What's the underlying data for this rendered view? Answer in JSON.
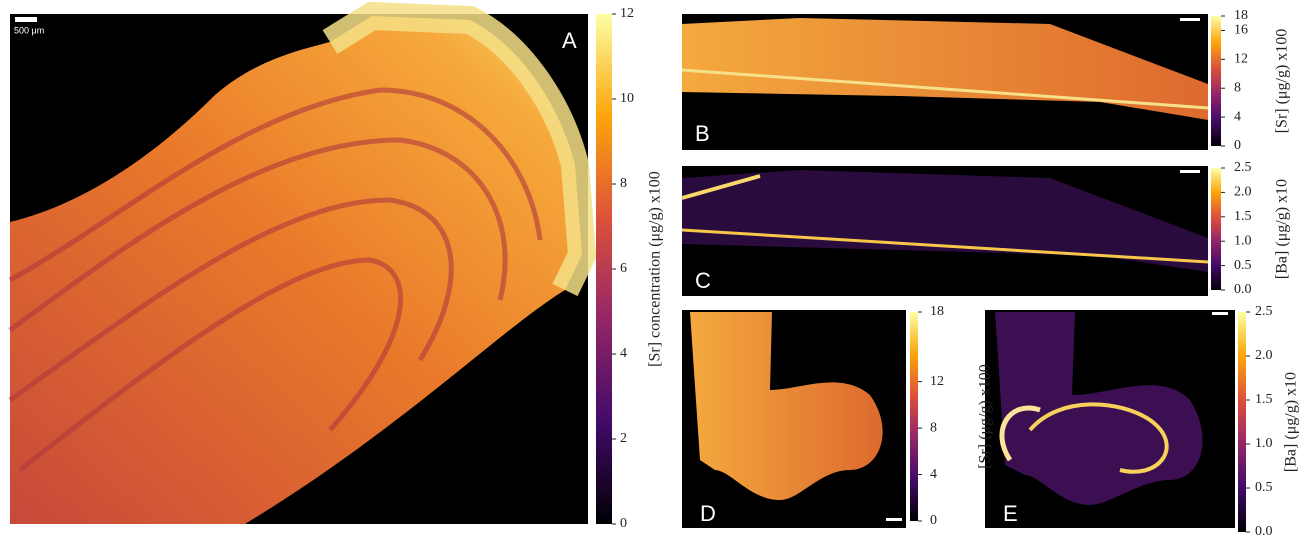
{
  "panels": [
    {
      "label": "A",
      "scale_bar": "500 μm",
      "colorbar": {
        "title": "[Sr] concentration (μg/g) x100",
        "lim": [
          0,
          12
        ],
        "ticks": [
          0,
          2,
          4,
          6,
          8,
          10,
          12
        ]
      }
    },
    {
      "label": "B",
      "colorbar": {
        "title": "[Sr] (μg/g) x100",
        "lim": [
          0,
          18
        ],
        "ticks": [
          0,
          4,
          8,
          12,
          16,
          18
        ]
      }
    },
    {
      "label": "C",
      "colorbar": {
        "title": "[Ba] (μg/g) x10",
        "lim": [
          0,
          2.5
        ],
        "ticks": [
          {
            "value": 0,
            "label": "0.0"
          },
          0.5,
          {
            "value": 1,
            "label": "1.0"
          },
          1.5,
          {
            "value": 2,
            "label": "2.0"
          },
          2.5
        ]
      }
    },
    {
      "label": "D",
      "colorbar": {
        "title": "[Sr] (μg/g) x100",
        "lim": [
          0,
          18
        ],
        "ticks": [
          0,
          4,
          8,
          12,
          18
        ]
      }
    },
    {
      "label": "E",
      "colorbar": {
        "title": "[Ba] (μg/g) x10",
        "lim": [
          0,
          2.5
        ],
        "ticks": [
          {
            "value": 0,
            "label": "0.0"
          },
          0.5,
          {
            "value": 1,
            "label": "1.0"
          },
          1.5,
          {
            "value": 2,
            "label": "2.0"
          },
          2.5
        ]
      }
    }
  ]
}
